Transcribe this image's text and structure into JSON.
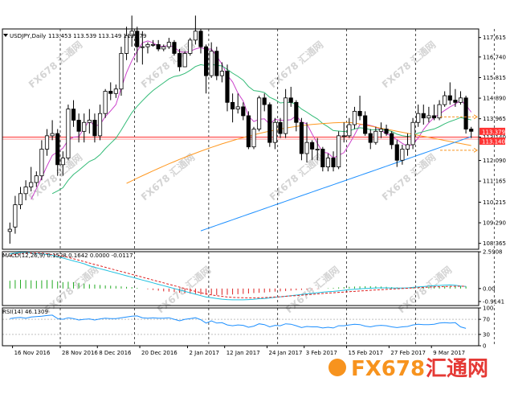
{
  "chart_data": [
    {
      "type": "candlestick",
      "instrument": "USDJPY,Daily",
      "ohlc_readout": "113.453 113.539 113.149 113.379",
      "yticks": [
        "117.615",
        "116.740",
        "115.815",
        "114.890",
        "113.965",
        "113.140",
        "112.090",
        "111.165",
        "110.215",
        "109.290",
        "108.365"
      ],
      "ylim": [
        108.1,
        118.0
      ],
      "bid_label": "113.379",
      "hline_label": "113.140",
      "hline_value": 113.14,
      "grid": false,
      "vertical_separators": true,
      "candles": [
        {
          "date": "2016-11-15",
          "o": 108.9,
          "h": 109.3,
          "l": 108.35,
          "c": 109.0
        },
        {
          "date": "2016-11-16",
          "o": 109.1,
          "h": 110.5,
          "l": 108.8,
          "c": 110.1
        },
        {
          "date": "2016-11-17",
          "o": 110.1,
          "h": 110.9,
          "l": 109.9,
          "c": 110.6
        },
        {
          "date": "2016-11-18",
          "o": 110.6,
          "h": 111.2,
          "l": 110.3,
          "c": 110.9
        },
        {
          "date": "2016-11-21",
          "o": 110.9,
          "h": 111.8,
          "l": 110.7,
          "c": 111.1
        },
        {
          "date": "2016-11-22",
          "o": 111.1,
          "h": 111.6,
          "l": 110.9,
          "c": 111.4
        },
        {
          "date": "2016-11-23",
          "o": 111.4,
          "h": 113.0,
          "l": 111.2,
          "c": 112.6
        },
        {
          "date": "2016-11-24",
          "o": 112.6,
          "h": 113.5,
          "l": 112.3,
          "c": 113.2
        },
        {
          "date": "2016-11-25",
          "o": 113.2,
          "h": 113.9,
          "l": 113.0,
          "c": 113.3
        },
        {
          "date": "2016-11-28",
          "o": 113.3,
          "h": 113.5,
          "l": 111.4,
          "c": 111.9
        },
        {
          "date": "2016-11-29",
          "o": 111.9,
          "h": 112.5,
          "l": 111.4,
          "c": 112.2
        },
        {
          "date": "2016-11-30",
          "o": 112.2,
          "h": 114.6,
          "l": 112.1,
          "c": 114.4
        },
        {
          "date": "2016-12-01",
          "o": 114.4,
          "h": 114.8,
          "l": 113.6,
          "c": 113.9
        },
        {
          "date": "2016-12-02",
          "o": 113.9,
          "h": 114.2,
          "l": 112.9,
          "c": 113.4
        },
        {
          "date": "2016-12-05",
          "o": 113.4,
          "h": 114.2,
          "l": 112.9,
          "c": 113.8
        },
        {
          "date": "2016-12-06",
          "o": 113.8,
          "h": 114.4,
          "l": 113.3,
          "c": 113.9
        },
        {
          "date": "2016-12-07",
          "o": 113.9,
          "h": 114.2,
          "l": 112.9,
          "c": 113.2
        },
        {
          "date": "2016-12-08",
          "o": 113.2,
          "h": 114.6,
          "l": 113.0,
          "c": 114.2
        },
        {
          "date": "2016-12-09",
          "o": 114.2,
          "h": 115.3,
          "l": 114.0,
          "c": 115.2
        },
        {
          "date": "2016-12-12",
          "o": 115.2,
          "h": 115.6,
          "l": 114.8,
          "c": 115.1
        },
        {
          "date": "2016-12-13",
          "o": 115.1,
          "h": 115.5,
          "l": 114.9,
          "c": 115.3
        },
        {
          "date": "2016-12-14",
          "o": 115.3,
          "h": 117.2,
          "l": 115.0,
          "c": 116.9
        },
        {
          "date": "2016-12-15",
          "o": 116.9,
          "h": 118.1,
          "l": 116.6,
          "c": 117.7
        },
        {
          "date": "2016-12-16",
          "o": 117.7,
          "h": 118.6,
          "l": 117.2,
          "c": 117.9
        },
        {
          "date": "2016-12-19",
          "o": 117.9,
          "h": 118.1,
          "l": 116.5,
          "c": 117.2
        },
        {
          "date": "2016-12-20",
          "o": 117.2,
          "h": 117.9,
          "l": 116.4,
          "c": 117.2
        },
        {
          "date": "2016-12-21",
          "o": 117.2,
          "h": 117.4,
          "l": 116.9,
          "c": 117.3
        },
        {
          "date": "2016-12-22",
          "o": 117.3,
          "h": 117.5,
          "l": 117.2,
          "c": 117.3
        },
        {
          "date": "2016-12-23",
          "o": 117.3,
          "h": 117.5,
          "l": 117.0,
          "c": 117.1
        },
        {
          "date": "2016-12-26",
          "o": 117.1,
          "h": 117.3,
          "l": 117.0,
          "c": 117.2
        },
        {
          "date": "2016-12-27",
          "o": 117.2,
          "h": 117.6,
          "l": 117.1,
          "c": 117.4
        },
        {
          "date": "2016-12-28",
          "o": 117.4,
          "h": 117.5,
          "l": 116.8,
          "c": 116.9
        },
        {
          "date": "2016-12-29",
          "o": 116.9,
          "h": 117.1,
          "l": 116.1,
          "c": 116.3
        },
        {
          "date": "2016-12-30",
          "o": 116.3,
          "h": 117.0,
          "l": 116.3,
          "c": 116.9
        },
        {
          "date": "2017-01-02",
          "o": 116.9,
          "h": 117.6,
          "l": 116.8,
          "c": 117.5
        },
        {
          "date": "2017-01-03",
          "o": 117.5,
          "h": 118.6,
          "l": 117.3,
          "c": 117.9
        },
        {
          "date": "2017-01-04",
          "o": 117.9,
          "h": 118.0,
          "l": 116.9,
          "c": 117.2
        },
        {
          "date": "2017-01-05",
          "o": 117.2,
          "h": 117.3,
          "l": 115.1,
          "c": 115.9
        },
        {
          "date": "2017-01-06",
          "o": 115.9,
          "h": 117.4,
          "l": 115.8,
          "c": 117.0
        },
        {
          "date": "2017-01-09",
          "o": 117.0,
          "h": 117.2,
          "l": 115.7,
          "c": 115.9
        },
        {
          "date": "2017-01-10",
          "o": 115.9,
          "h": 116.5,
          "l": 115.6,
          "c": 116.1
        },
        {
          "date": "2017-01-11",
          "o": 116.1,
          "h": 116.4,
          "l": 114.3,
          "c": 114.7
        },
        {
          "date": "2017-01-12",
          "o": 114.7,
          "h": 115.1,
          "l": 113.8,
          "c": 114.4
        },
        {
          "date": "2017-01-13",
          "o": 114.4,
          "h": 115.1,
          "l": 114.2,
          "c": 114.5
        },
        {
          "date": "2017-01-16",
          "o": 114.5,
          "h": 114.7,
          "l": 113.9,
          "c": 114.1
        },
        {
          "date": "2017-01-17",
          "o": 114.1,
          "h": 114.3,
          "l": 112.6,
          "c": 112.7
        },
        {
          "date": "2017-01-18",
          "o": 112.7,
          "h": 113.6,
          "l": 112.6,
          "c": 113.5
        },
        {
          "date": "2017-01-19",
          "o": 113.5,
          "h": 115.0,
          "l": 113.4,
          "c": 114.9
        },
        {
          "date": "2017-01-20",
          "o": 114.9,
          "h": 115.1,
          "l": 114.3,
          "c": 114.6
        },
        {
          "date": "2017-01-23",
          "o": 114.6,
          "h": 114.7,
          "l": 112.7,
          "c": 112.9
        },
        {
          "date": "2017-01-24",
          "o": 112.9,
          "h": 114.0,
          "l": 112.6,
          "c": 113.8
        },
        {
          "date": "2017-01-25",
          "o": 113.8,
          "h": 114.0,
          "l": 113.1,
          "c": 113.3
        },
        {
          "date": "2017-01-26",
          "o": 113.3,
          "h": 115.3,
          "l": 113.1,
          "c": 114.9
        },
        {
          "date": "2017-01-27",
          "o": 114.9,
          "h": 115.4,
          "l": 114.5,
          "c": 114.7
        },
        {
          "date": "2017-01-30",
          "o": 114.7,
          "h": 114.8,
          "l": 113.4,
          "c": 113.8
        },
        {
          "date": "2017-01-31",
          "o": 113.8,
          "h": 114.0,
          "l": 112.1,
          "c": 112.4
        },
        {
          "date": "2017-02-01",
          "o": 112.4,
          "h": 113.8,
          "l": 112.0,
          "c": 112.9
        },
        {
          "date": "2017-02-02",
          "o": 112.9,
          "h": 113.0,
          "l": 112.1,
          "c": 112.6
        },
        {
          "date": "2017-02-03",
          "o": 112.6,
          "h": 113.1,
          "l": 112.1,
          "c": 112.6
        },
        {
          "date": "2017-02-06",
          "o": 112.6,
          "h": 112.7,
          "l": 111.6,
          "c": 111.8
        },
        {
          "date": "2017-02-07",
          "o": 111.8,
          "h": 112.4,
          "l": 111.6,
          "c": 112.2
        },
        {
          "date": "2017-02-08",
          "o": 112.2,
          "h": 112.5,
          "l": 111.6,
          "c": 111.8
        },
        {
          "date": "2017-02-09",
          "o": 111.8,
          "h": 113.4,
          "l": 111.7,
          "c": 113.2
        },
        {
          "date": "2017-02-10",
          "o": 113.2,
          "h": 113.8,
          "l": 112.9,
          "c": 113.2
        },
        {
          "date": "2017-02-13",
          "o": 113.2,
          "h": 114.0,
          "l": 113.1,
          "c": 113.7
        },
        {
          "date": "2017-02-14",
          "o": 113.7,
          "h": 114.5,
          "l": 113.5,
          "c": 114.3
        },
        {
          "date": "2017-02-15",
          "o": 114.3,
          "h": 115.0,
          "l": 113.9,
          "c": 114.1
        },
        {
          "date": "2017-02-16",
          "o": 114.1,
          "h": 114.3,
          "l": 113.2,
          "c": 113.3
        },
        {
          "date": "2017-02-17",
          "o": 113.3,
          "h": 113.5,
          "l": 112.6,
          "c": 112.9
        },
        {
          "date": "2017-02-20",
          "o": 112.9,
          "h": 113.6,
          "l": 112.8,
          "c": 113.4
        },
        {
          "date": "2017-02-21",
          "o": 113.4,
          "h": 113.8,
          "l": 113.1,
          "c": 113.5
        },
        {
          "date": "2017-02-22",
          "o": 113.5,
          "h": 113.7,
          "l": 113.2,
          "c": 113.3
        },
        {
          "date": "2017-02-23",
          "o": 113.3,
          "h": 113.4,
          "l": 112.6,
          "c": 112.8
        },
        {
          "date": "2017-02-24",
          "o": 112.8,
          "h": 113.0,
          "l": 111.8,
          "c": 112.1
        },
        {
          "date": "2017-02-27",
          "o": 112.1,
          "h": 112.8,
          "l": 111.9,
          "c": 112.6
        },
        {
          "date": "2017-02-28",
          "o": 112.6,
          "h": 113.3,
          "l": 112.3,
          "c": 112.8
        },
        {
          "date": "2017-03-01",
          "o": 112.8,
          "h": 114.0,
          "l": 112.6,
          "c": 113.8
        },
        {
          "date": "2017-03-02",
          "o": 113.8,
          "h": 114.6,
          "l": 113.6,
          "c": 114.2
        },
        {
          "date": "2017-03-03",
          "o": 114.2,
          "h": 114.6,
          "l": 113.7,
          "c": 114.0
        },
        {
          "date": "2017-03-06",
          "o": 114.0,
          "h": 114.5,
          "l": 113.8,
          "c": 114.1
        },
        {
          "date": "2017-03-07",
          "o": 114.1,
          "h": 114.6,
          "l": 113.9,
          "c": 114.0
        },
        {
          "date": "2017-03-08",
          "o": 114.0,
          "h": 114.8,
          "l": 113.9,
          "c": 114.6
        },
        {
          "date": "2017-03-09",
          "o": 114.6,
          "h": 115.2,
          "l": 114.5,
          "c": 115.0
        },
        {
          "date": "2017-03-10",
          "o": 115.0,
          "h": 115.6,
          "l": 114.6,
          "c": 114.8
        },
        {
          "date": "2017-03-13",
          "o": 114.8,
          "h": 115.3,
          "l": 114.5,
          "c": 114.7
        },
        {
          "date": "2017-03-14",
          "o": 114.7,
          "h": 115.2,
          "l": 114.6,
          "c": 114.9
        },
        {
          "date": "2017-03-15",
          "o": 114.9,
          "h": 115.0,
          "l": 113.3,
          "c": 113.5
        },
        {
          "date": "2017-03-16",
          "o": 113.5,
          "h": 113.6,
          "l": 113.1,
          "c": 113.4
        }
      ]
    },
    {
      "type": "line+bar",
      "label": "MACD(12,26,9) 0.1528 0.1642 0.0000 -0.0117",
      "yticks": [
        "2.5908",
        "0.00",
        "-0.9141"
      ],
      "ylim": [
        -1.2,
        2.6
      ],
      "hist": [
        0.55,
        0.6,
        0.62,
        0.6,
        0.58,
        0.55,
        0.58,
        0.6,
        0.6,
        0.5,
        0.45,
        0.48,
        0.45,
        0.4,
        0.35,
        0.3,
        0.28,
        0.25,
        0.22,
        0.2,
        0.18,
        0.15,
        0.12,
        0.1,
        0.05,
        0.0,
        -0.05,
        -0.1,
        -0.15,
        -0.2,
        -0.22,
        -0.25,
        -0.3,
        -0.33,
        -0.36,
        -0.4,
        -0.42,
        -0.44,
        -0.45,
        -0.46,
        -0.45,
        -0.44,
        -0.42,
        -0.4,
        -0.38,
        -0.35,
        -0.32,
        -0.3,
        -0.28,
        -0.25,
        -0.22,
        -0.2,
        -0.18,
        -0.15,
        -0.12,
        -0.1,
        -0.08,
        -0.05,
        -0.03,
        0.0,
        0.03,
        0.05,
        0.08,
        0.1,
        0.12,
        0.14,
        0.15,
        0.16,
        0.16,
        0.15,
        0.14,
        0.12,
        0.1,
        0.08,
        0.06,
        0.05,
        0.06,
        0.08,
        0.1,
        0.12,
        0.14,
        0.15,
        0.16,
        0.17,
        0.17,
        0.16,
        0.15
      ],
      "signal": [
        2.3,
        2.4,
        2.45,
        2.5,
        2.5,
        2.5,
        2.5,
        2.45,
        2.4,
        2.35,
        2.3,
        2.2,
        2.1,
        2.0,
        1.9,
        1.8,
        1.7,
        1.6,
        1.5,
        1.4,
        1.3,
        1.2,
        1.1,
        1.0,
        0.9,
        0.8,
        0.7,
        0.6,
        0.5,
        0.4,
        0.3,
        0.2,
        0.1,
        0.0,
        -0.1,
        -0.2,
        -0.3,
        -0.38,
        -0.45,
        -0.5,
        -0.55,
        -0.6,
        -0.62,
        -0.64,
        -0.65,
        -0.66,
        -0.66,
        -0.65,
        -0.64,
        -0.62,
        -0.6,
        -0.58,
        -0.55,
        -0.52,
        -0.5,
        -0.47,
        -0.44,
        -0.41,
        -0.38,
        -0.35,
        -0.32,
        -0.3,
        -0.27,
        -0.25,
        -0.22,
        -0.2,
        -0.17,
        -0.15,
        -0.12,
        -0.1,
        -0.08,
        -0.06,
        -0.04,
        -0.02,
        0.0,
        0.02,
        0.04,
        0.06,
        0.08,
        0.1,
        0.12,
        0.13,
        0.14,
        0.15,
        0.16,
        0.16,
        0.16
      ],
      "macd": [
        2.45,
        2.5,
        2.55,
        2.55,
        2.5,
        2.45,
        2.45,
        2.4,
        2.35,
        2.25,
        2.15,
        2.05,
        1.95,
        1.85,
        1.75,
        1.6,
        1.5,
        1.4,
        1.3,
        1.2,
        1.1,
        1.0,
        0.9,
        0.8,
        0.7,
        0.6,
        0.5,
        0.4,
        0.3,
        0.2,
        0.1,
        0.0,
        -0.1,
        -0.2,
        -0.3,
        -0.4,
        -0.5,
        -0.6,
        -0.65,
        -0.7,
        -0.75,
        -0.78,
        -0.8,
        -0.8,
        -0.8,
        -0.78,
        -0.76,
        -0.72,
        -0.7,
        -0.66,
        -0.62,
        -0.58,
        -0.55,
        -0.5,
        -0.46,
        -0.42,
        -0.38,
        -0.34,
        -0.3,
        -0.26,
        -0.22,
        -0.2,
        -0.16,
        -0.12,
        -0.08,
        -0.05,
        -0.02,
        0.0,
        0.02,
        0.04,
        0.05,
        0.05,
        0.04,
        0.03,
        0.03,
        0.05,
        0.08,
        0.11,
        0.14,
        0.17,
        0.2,
        0.22,
        0.24,
        0.25,
        0.23,
        0.18,
        0.15
      ]
    },
    {
      "type": "line",
      "label": "RSI(14) 46.1309",
      "yticks": [
        "100",
        "70",
        "30",
        "0"
      ],
      "ylim": [
        0,
        100
      ],
      "levels": [
        70,
        30
      ],
      "values": [
        72,
        74,
        75,
        73,
        76,
        77,
        78,
        80,
        81,
        72,
        70,
        74,
        72,
        68,
        70,
        71,
        68,
        71,
        73,
        72,
        72,
        74,
        76,
        78,
        79,
        74,
        73,
        74,
        73,
        73,
        74,
        70,
        66,
        70,
        72,
        74,
        69,
        60,
        66,
        60,
        61,
        55,
        53,
        55,
        54,
        49,
        52,
        58,
        56,
        50,
        54,
        53,
        58,
        57,
        53,
        48,
        51,
        50,
        50,
        47,
        49,
        47,
        53,
        53,
        55,
        57,
        56,
        52,
        50,
        53,
        54,
        53,
        50,
        48,
        50,
        51,
        55,
        57,
        56,
        56,
        57,
        60,
        61,
        60,
        61,
        50,
        46
      ],
      "color": "#1e90ff"
    }
  ],
  "xaxis": {
    "labels": [
      "16 Nov 2016",
      "28 Nov 2016",
      "8 Dec 2016",
      "20 Dec 2016",
      "2 Jan 2017",
      "12 Jan 2017",
      "24 Jan 2017",
      "3 Feb 2017",
      "15 Feb 2017",
      "27 Feb 2017",
      "9 Mar 2017"
    ]
  },
  "watermark": {
    "text": "FX678 汇通网",
    "brand_fx": "FX678",
    "brand_cn": "汇通网"
  },
  "colors": {
    "bull": "#ffffff",
    "bear": "#000000",
    "ma_fast": "#cc44cc",
    "ma_mid": "#33bb77",
    "ma_slow": "#ff9922",
    "ma_long": "#1e90ff",
    "hline": "#ff3333",
    "hist_pos": "#22aa22",
    "hist_neg": "#dd2222",
    "macd_line": "#20c0e0",
    "signal_line": "#dd2222",
    "brand_red": "#e53935",
    "brand_orange": "#f7931e"
  }
}
